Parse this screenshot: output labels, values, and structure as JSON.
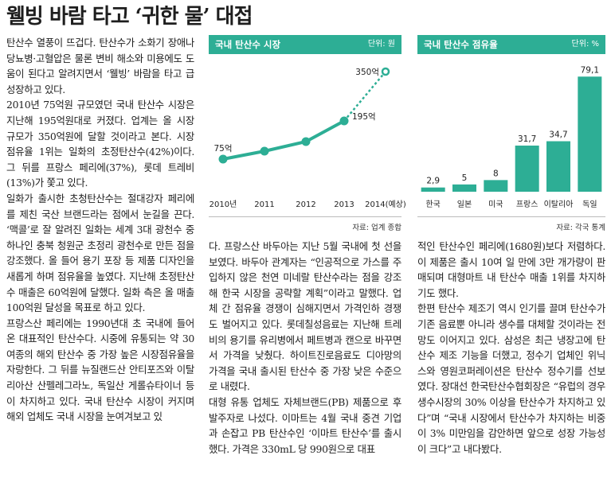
{
  "headline": "웰빙 바람 타고 ‘귀한 물’ 대접",
  "column1": [
    "탄산수 열풍이 뜨겁다. 탄산수가 소화기 장애나 당뇨병·고혈압은 물론 변비 해소와 미용에도 도움이 된다고 알려지면서 ‘웰빙’ 바람을 타고 급성장하고 있다.",
    "2010년 75억원 규모였던 국내 탄산수 시장은 지난해 195억원대로 커졌다. 업계는 올 시장 규모가 350억원에 달할 것이라고 본다. 시장 점유율 1위는 일화의 초정탄산수(42%)이다. 그 뒤를 프랑스 페리에(37%), 롯데 트레비(13%)가 쫓고 있다.",
    "일화가 출시한 초청탄산수는 절대강자 페리에를 제친 국산 브랜드라는 점에서 눈길을 끈다. ‘맥콜’로 잘 알려진 일화는 세계 3대 광천수 중 하나인 충북 청원군 초정리 광천수로 만든 점을 강조했다. 올 들어 용기 포장 등 제품 디자인을 새롭게 하며 점유율을 높였다. 지난해 초정탄산수 매출은 60억원에 달했다. 일화 측은 올 매출 100억원 달성을 목표로 하고 있다.",
    "프랑스산 페리에는 1990년대 초 국내에 들어온 대표적인 탄산수다. 시중에 유통되는 약 30여종의 해외 탄산수 중 가장 높은 시장점유율을 자랑한다. 그 뒤를 뉴질랜드산 안티포즈와 이탈리아산 산펠레그라노, 독일산 게롤슈타이너 등이 차지하고 있다. 국내 탄산수 시장이 커지며 해외 업체도 국내 시장을 눈여겨보고 있"
  ],
  "column2": [
    "다. 프랑스산 바두아는 지난 5월 국내에 첫 선을 보였다. 바두아 관계자는 “인공적으로 가스를 주입하지 않은 천연 미네랄 탄산수라는 점을 강조해 한국 시장을 공략할 계획”이라고 말했다. 업체 간 점유율 경쟁이 심해지면서 가격인하 경쟁도 벌어지고 있다. 롯데칠성음료는 지난해 트레비의 용기를 유리병에서 페트병과 캔으로 바꾸면서 가격을 낮췄다. 하이트진로음료도 디아망의 가격을 국내 출시된 탄산수 중 가장 낮은 수준으로 내렸다.",
    "대형 유통 업체도 자체브랜드(PB) 제품으로 후발주자로 나섰다. 이마트는 4월 국내 중견 기업과 손잡고 PB 탄산수인 ‘이마트 탄산수’를 출시했다. 가격은 330mL 당 990원으로 대표"
  ],
  "column3": [
    "적인 탄산수인 페리에(1680원)보다 저렴하다. 이 제품은 출시 10여 일 만에 3만 개가량이 판매되며 대형마트 내 탄산수 매출 1위를 차지하기도 했다.",
    "한편 탄산수 제조기 역시 인기를 끌며 탄산수가 기존 음료뿐 아니라 생수를 대체할 것이라는 전망도 이어지고 있다. 삼성은 최근 냉장고에 탄산수 제조 기능을 더했고, 정수기 업체인 위닉스와 영원코퍼레이션은 탄산수 정수기를 선보였다. 장대선 한국탄산수협회장은 “유럽의 경우 생수시장의 30% 이상을 탄산수가 차지하고 있다”며 “국내 시장에서 탄산수가 차지하는 비중이 3% 미만임을 감안하면 앞으로 성장 가능성이 크다”고 내다봤다."
  ],
  "chart_data": [
    {
      "type": "line",
      "title": "국내 탄산수 시장",
      "unit": "단위: 원",
      "source": "자료: 업계 종합",
      "categories": [
        "2010년",
        "2011",
        "2012",
        "2013",
        "2014(예상)"
      ],
      "values": [
        75,
        100,
        130,
        195,
        350
      ],
      "value_labels": [
        "75억",
        "",
        "",
        "195억",
        "350억"
      ],
      "projected_from_index": 3,
      "color": "#2dae95"
    },
    {
      "type": "bar",
      "title": "국내 탄산수 점유율",
      "unit": "단위: %",
      "source": "자료: 각국 통계",
      "categories": [
        "한국",
        "일본",
        "미국",
        "프랑스",
        "이탈리아",
        "독일"
      ],
      "values": [
        2.9,
        5,
        8,
        31.7,
        34.7,
        79.1
      ],
      "value_labels": [
        "2,9",
        "5",
        "8",
        "31,7",
        "34,7",
        "79,1"
      ],
      "color": "#2dae95"
    }
  ]
}
